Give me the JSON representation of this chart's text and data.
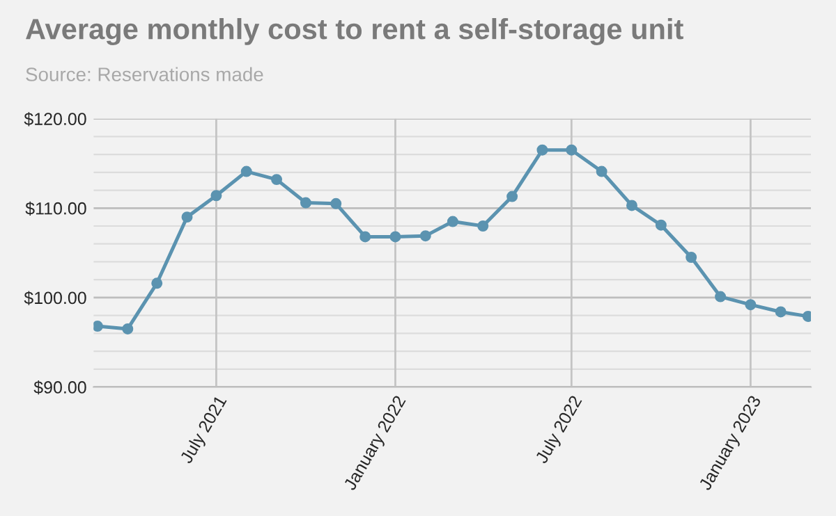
{
  "chart_data": {
    "type": "line",
    "title": "Average monthly cost to rent a self-storage unit",
    "annotations": [
      "Source: Reservations made"
    ],
    "x": [
      "2021-03",
      "2021-04",
      "2021-05",
      "2021-06",
      "2021-07",
      "2021-08",
      "2021-09",
      "2021-10",
      "2021-11",
      "2021-12",
      "2022-01",
      "2022-02",
      "2022-03",
      "2022-04",
      "2022-05",
      "2022-06",
      "2022-07",
      "2022-08",
      "2022-09",
      "2022-10",
      "2022-11",
      "2022-12",
      "2023-01",
      "2023-02",
      "2023-03"
    ],
    "series": [
      {
        "color": "#5b93b0",
        "values": [
          96.8,
          96.5,
          101.6,
          109.0,
          111.4,
          114.1,
          113.2,
          110.6,
          110.5,
          106.8,
          106.8,
          106.9,
          108.5,
          108.0,
          111.3,
          116.5,
          116.5,
          114.1,
          110.3,
          108.1,
          104.5,
          100.1,
          99.2,
          98.4,
          97.9
        ]
      }
    ],
    "xlim": [
      "2021-02-25",
      "2023-03-04"
    ],
    "xticks": [
      {
        "value": "2021-07",
        "label": "July 2021"
      },
      {
        "value": "2022-01",
        "label": "January 2022"
      },
      {
        "value": "2022-07",
        "label": "July 2022"
      },
      {
        "value": "2023-01",
        "label": "January 2023"
      }
    ],
    "ylim": [
      90,
      120
    ],
    "yticks": [
      {
        "value": 90,
        "label": "$90.00"
      },
      {
        "value": 92,
        "label": null
      },
      {
        "value": 94,
        "label": null
      },
      {
        "value": 96,
        "label": null
      },
      {
        "value": 98,
        "label": null
      },
      {
        "value": 100,
        "label": "$100.00"
      },
      {
        "value": 102,
        "label": null
      },
      {
        "value": 104,
        "label": null
      },
      {
        "value": 106,
        "label": null
      },
      {
        "value": 108,
        "label": null
      },
      {
        "value": 110,
        "label": "$110.00"
      },
      {
        "value": 112,
        "label": null
      },
      {
        "value": 114,
        "label": null
      },
      {
        "value": 116,
        "label": null
      },
      {
        "value": 118,
        "label": null
      },
      {
        "value": 120,
        "label": "$120.00"
      }
    ],
    "grid": true,
    "marker": "circle",
    "line_style": "solid",
    "legend": false
  }
}
